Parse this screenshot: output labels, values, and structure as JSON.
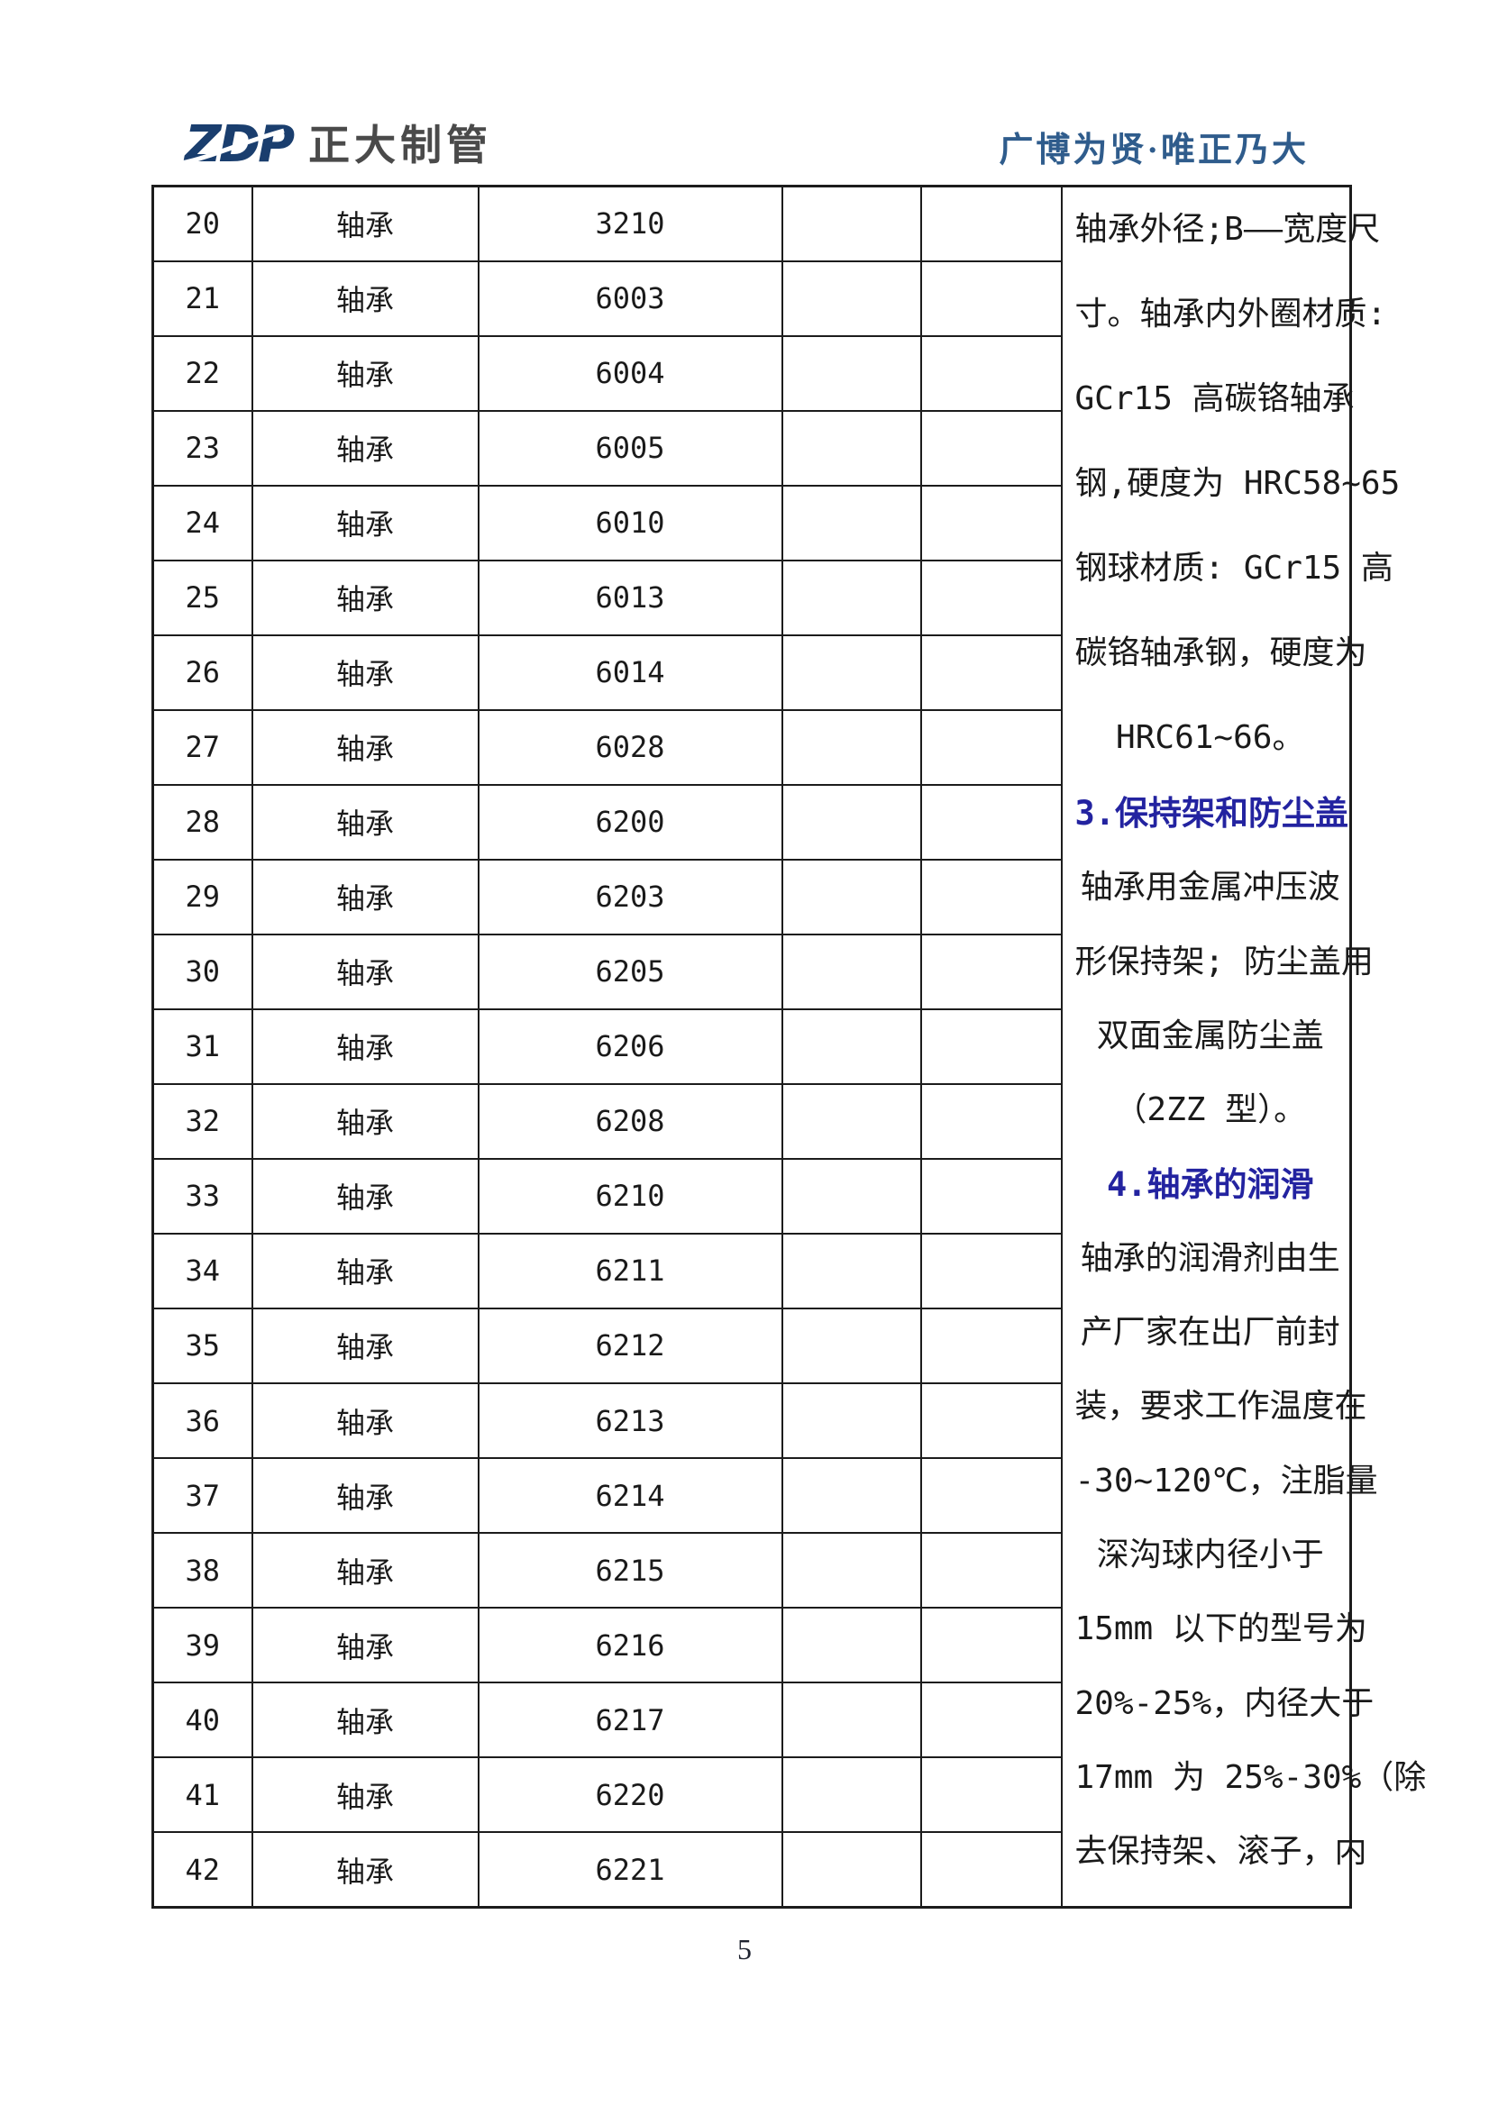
{
  "header": {
    "logo_zdp": "ZDP",
    "logo_company": "正大制管",
    "slogan": "广博为贤·唯正乃大"
  },
  "table": {
    "rows": [
      {
        "no": "20",
        "name": "轴承",
        "model": "3210"
      },
      {
        "no": "21",
        "name": "轴承",
        "model": "6003"
      },
      {
        "no": "22",
        "name": "轴承",
        "model": "6004"
      },
      {
        "no": "23",
        "name": "轴承",
        "model": "6005"
      },
      {
        "no": "24",
        "name": "轴承",
        "model": "6010"
      },
      {
        "no": "25",
        "name": "轴承",
        "model": "6013"
      },
      {
        "no": "26",
        "name": "轴承",
        "model": "6014"
      },
      {
        "no": "27",
        "name": "轴承",
        "model": "6028"
      },
      {
        "no": "28",
        "name": "轴承",
        "model": "6200"
      },
      {
        "no": "29",
        "name": "轴承",
        "model": "6203"
      },
      {
        "no": "30",
        "name": "轴承",
        "model": "6205"
      },
      {
        "no": "31",
        "name": "轴承",
        "model": "6206"
      },
      {
        "no": "32",
        "name": "轴承",
        "model": "6208"
      },
      {
        "no": "33",
        "name": "轴承",
        "model": "6210"
      },
      {
        "no": "34",
        "name": "轴承",
        "model": "6211"
      },
      {
        "no": "35",
        "name": "轴承",
        "model": "6212"
      },
      {
        "no": "36",
        "name": "轴承",
        "model": "6213"
      },
      {
        "no": "37",
        "name": "轴承",
        "model": "6214"
      },
      {
        "no": "38",
        "name": "轴承",
        "model": "6215"
      },
      {
        "no": "39",
        "name": "轴承",
        "model": "6216"
      },
      {
        "no": "40",
        "name": "轴承",
        "model": "6217"
      },
      {
        "no": "41",
        "name": "轴承",
        "model": "6220"
      },
      {
        "no": "42",
        "name": "轴承",
        "model": "6221"
      }
    ]
  },
  "notes": {
    "lines": [
      {
        "text": "轴承外径;B——宽度尺",
        "heading": false
      },
      {
        "text": "寸。轴承内外圈材质:",
        "heading": false
      },
      {
        "text": "GCr15 高碳铬轴承",
        "heading": false
      },
      {
        "text": "钢,硬度为 HRC58~65",
        "heading": false
      },
      {
        "text": "钢球材质: GCr15 高",
        "heading": false
      },
      {
        "text": "碳铬轴承钢，硬度为",
        "heading": false
      },
      {
        "text": "HRC61~66。",
        "heading": false
      },
      {
        "text": "3.保持架和防尘盖",
        "heading": true
      },
      {
        "text": "轴承用金属冲压波",
        "heading": false
      },
      {
        "text": "形保持架; 防尘盖用",
        "heading": false
      },
      {
        "text": "双面金属防尘盖",
        "heading": false
      },
      {
        "text": "（2ZZ 型）。",
        "heading": false
      },
      {
        "text": "4.轴承的润滑",
        "heading": true
      },
      {
        "text": "轴承的润滑剂由生",
        "heading": false
      },
      {
        "text": "产厂家在出厂前封",
        "heading": false
      },
      {
        "text": "装，要求工作温度在",
        "heading": false
      },
      {
        "text": "-30~120℃，注脂量",
        "heading": false
      },
      {
        "text": "深沟球内径小于",
        "heading": false
      },
      {
        "text": "15mm 以下的型号为",
        "heading": false
      },
      {
        "text": "20%-25%，内径大于",
        "heading": false
      },
      {
        "text": "17mm 为 25%-30%（除",
        "heading": false
      },
      {
        "text": "去保持架、滚子，内",
        "heading": false
      }
    ]
  },
  "footer": {
    "page_number": "5"
  },
  "colors": {
    "accent_navy": "#2323a0",
    "slogan_blue": "#2f5c8c",
    "logo_navy": "#1a3e6e",
    "logo_gray": "#4a4a4a",
    "border": "#1c1c1c",
    "ink": "#1a1a1a"
  }
}
